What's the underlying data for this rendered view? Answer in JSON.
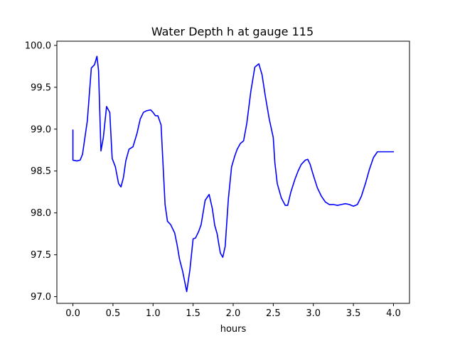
{
  "chart_data": {
    "type": "line",
    "title": "Water Depth h at gauge 115",
    "xlabel": "hours",
    "ylabel": "",
    "xlim": [
      -0.2,
      4.2
    ],
    "ylim": [
      96.92,
      100.05
    ],
    "xticks": [
      0.0,
      0.5,
      1.0,
      1.5,
      2.0,
      2.5,
      3.0,
      3.5,
      4.0
    ],
    "xtick_labels": [
      "0.0",
      "0.5",
      "1.0",
      "1.5",
      "2.0",
      "2.5",
      "3.0",
      "3.5",
      "4.0"
    ],
    "yticks": [
      97.0,
      97.5,
      98.0,
      98.5,
      99.0,
      99.5,
      100.0
    ],
    "ytick_labels": [
      "97.0",
      "97.5",
      "98.0",
      "98.5",
      "99.0",
      "99.5",
      "100.0"
    ],
    "grid": false,
    "legend": "none",
    "series": [
      {
        "color": "#0000ff",
        "x": [
          0.0,
          0.0,
          0.05,
          0.09,
          0.12,
          0.18,
          0.23,
          0.27,
          0.3,
          0.32,
          0.35,
          0.38,
          0.42,
          0.46,
          0.49,
          0.53,
          0.57,
          0.6,
          0.63,
          0.66,
          0.7,
          0.75,
          0.8,
          0.84,
          0.88,
          0.92,
          0.97,
          1.0,
          1.03,
          1.06,
          1.1,
          1.15,
          1.18,
          1.22,
          1.27,
          1.3,
          1.33,
          1.37,
          1.42,
          1.46,
          1.5,
          1.53,
          1.57,
          1.6,
          1.65,
          1.7,
          1.74,
          1.77,
          1.8,
          1.82,
          1.84,
          1.87,
          1.9,
          1.94,
          1.98,
          2.02,
          2.05,
          2.09,
          2.13,
          2.17,
          2.22,
          2.27,
          2.32,
          2.36,
          2.4,
          2.45,
          2.5,
          2.52,
          2.55,
          2.6,
          2.65,
          2.68,
          2.72,
          2.77,
          2.81,
          2.85,
          2.9,
          2.93,
          2.96,
          3.0,
          3.05,
          3.1,
          3.15,
          3.2,
          3.25,
          3.3,
          3.35,
          3.4,
          3.45,
          3.5,
          3.55,
          3.6,
          3.65,
          3.7,
          3.75,
          3.8,
          3.85,
          3.9,
          3.95,
          4.0
        ],
        "y": [
          98.99,
          98.63,
          98.62,
          98.63,
          98.7,
          99.1,
          99.73,
          99.77,
          99.87,
          99.7,
          98.74,
          98.9,
          99.27,
          99.2,
          98.65,
          98.55,
          98.35,
          98.31,
          98.42,
          98.62,
          98.76,
          98.79,
          98.95,
          99.12,
          99.2,
          99.22,
          99.23,
          99.2,
          99.16,
          99.16,
          99.05,
          98.1,
          97.9,
          97.86,
          97.76,
          97.62,
          97.45,
          97.3,
          97.06,
          97.32,
          97.69,
          97.7,
          97.78,
          97.86,
          98.15,
          98.22,
          98.05,
          97.85,
          97.75,
          97.63,
          97.52,
          97.47,
          97.6,
          98.17,
          98.55,
          98.68,
          98.76,
          98.83,
          98.86,
          99.07,
          99.45,
          99.74,
          99.78,
          99.65,
          99.4,
          99.12,
          98.9,
          98.6,
          98.35,
          98.18,
          98.09,
          98.09,
          98.25,
          98.4,
          98.5,
          98.58,
          98.63,
          98.64,
          98.58,
          98.45,
          98.3,
          98.2,
          98.13,
          98.1,
          98.1,
          98.09,
          98.1,
          98.11,
          98.1,
          98.08,
          98.1,
          98.2,
          98.35,
          98.52,
          98.66,
          98.73,
          98.73,
          98.73,
          98.73,
          98.73
        ]
      }
    ]
  }
}
